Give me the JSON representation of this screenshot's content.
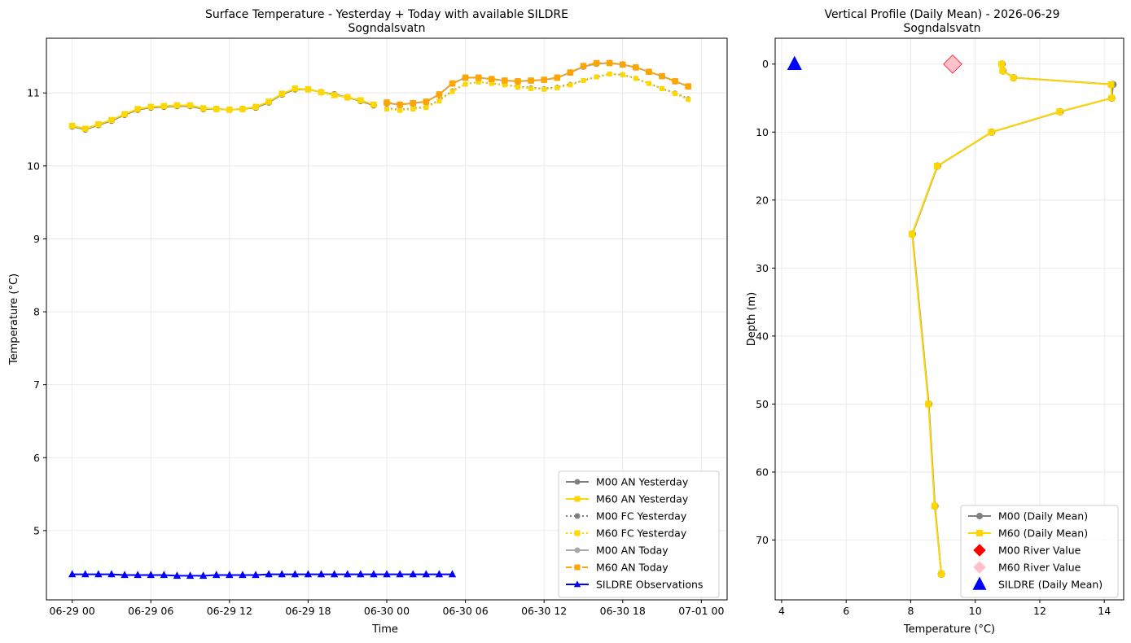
{
  "chart_data": [
    {
      "type": "line",
      "title": "Surface Temperature - Yesterday + Today with available SILDRE",
      "subtitle": "Sogndalsvatn",
      "xlabel": "Time",
      "ylabel": "Temperature (°C)",
      "xlim": [
        "2026-06-28 22:02",
        "2026-07-01 01:58"
      ],
      "ylim": [
        4.05,
        11.75
      ],
      "x_tick_labels": [
        "06-29 00",
        "06-29 06",
        "06-29 12",
        "06-29 18",
        "06-30 00",
        "06-30 06",
        "06-30 12",
        "06-30 18",
        "07-01 00"
      ],
      "y_tick_labels": [
        "5",
        "6",
        "7",
        "8",
        "9",
        "10",
        "11"
      ],
      "y_ticks": [
        5,
        6,
        7,
        8,
        9,
        10,
        11
      ],
      "grid": true,
      "legend_position": "lower-right",
      "series": [
        {
          "name": "M00 AN Yesterday",
          "color": "#808080",
          "style": "solid",
          "marker": "circle",
          "x": [
            "06-29 00",
            "06-29 01",
            "06-29 02",
            "06-29 03",
            "06-29 04",
            "06-29 05",
            "06-29 06",
            "06-29 07",
            "06-29 08",
            "06-29 09",
            "06-29 10",
            "06-29 11",
            "06-29 12",
            "06-29 13",
            "06-29 14",
            "06-29 15",
            "06-29 16",
            "06-29 17",
            "06-29 18",
            "06-29 19",
            "06-29 20",
            "06-29 21",
            "06-29 22",
            "06-29 23"
          ],
          "values": [
            10.54,
            10.5,
            10.56,
            10.62,
            10.7,
            10.77,
            10.8,
            10.81,
            10.82,
            10.82,
            10.78,
            10.78,
            10.77,
            10.78,
            10.8,
            10.87,
            10.98,
            11.05,
            11.05,
            11.01,
            10.98,
            10.94,
            10.89,
            10.83
          ]
        },
        {
          "name": "M60 AN Yesterday",
          "color": "#FFD700",
          "style": "solid",
          "marker": "square",
          "x": [
            "06-29 00",
            "06-29 01",
            "06-29 02",
            "06-29 03",
            "06-29 04",
            "06-29 05",
            "06-29 06",
            "06-29 07",
            "06-29 08",
            "06-29 09",
            "06-29 10",
            "06-29 11",
            "06-29 12",
            "06-29 13",
            "06-29 14",
            "06-29 15",
            "06-29 16",
            "06-29 17",
            "06-29 18",
            "06-29 19",
            "06-29 20",
            "06-29 21",
            "06-29 22",
            "06-29 23"
          ],
          "values": [
            10.55,
            10.51,
            10.57,
            10.63,
            10.71,
            10.78,
            10.81,
            10.82,
            10.83,
            10.83,
            10.79,
            10.78,
            10.77,
            10.78,
            10.81,
            10.88,
            10.99,
            11.06,
            11.05,
            11.01,
            10.97,
            10.94,
            10.9,
            10.84
          ]
        },
        {
          "name": "M00 FC Yesterday",
          "color": "#808080",
          "style": "dotted",
          "marker": "circle",
          "x": [
            "06-30 00",
            "06-30 01",
            "06-30 02",
            "06-30 03",
            "06-30 04",
            "06-30 05",
            "06-30 06",
            "06-30 07",
            "06-30 08",
            "06-30 09",
            "06-30 10",
            "06-30 11",
            "06-30 12",
            "06-30 13",
            "06-30 14",
            "06-30 15",
            "06-30 16",
            "06-30 17",
            "06-30 18",
            "06-30 19",
            "06-30 20",
            "06-30 21",
            "06-30 22",
            "06-30 23"
          ],
          "values": [
            10.79,
            10.77,
            10.79,
            10.81,
            10.9,
            11.03,
            11.12,
            11.15,
            11.13,
            11.11,
            11.09,
            11.07,
            11.06,
            11.08,
            11.12,
            11.17,
            11.22,
            11.26,
            11.25,
            11.2,
            11.13,
            11.06,
            11.0,
            10.92
          ]
        },
        {
          "name": "M60 FC Yesterday",
          "color": "#FFD700",
          "style": "dotted",
          "marker": "square",
          "x": [
            "06-30 00",
            "06-30 01",
            "06-30 02",
            "06-30 03",
            "06-30 04",
            "06-30 05",
            "06-30 06",
            "06-30 07",
            "06-30 08",
            "06-30 09",
            "06-30 10",
            "06-30 11",
            "06-30 12",
            "06-30 13",
            "06-30 14",
            "06-30 15",
            "06-30 16",
            "06-30 17",
            "06-30 18",
            "06-30 19",
            "06-30 20",
            "06-30 21",
            "06-30 22",
            "06-30 23"
          ],
          "values": [
            10.78,
            10.76,
            10.78,
            10.8,
            10.89,
            11.02,
            11.12,
            11.15,
            11.13,
            11.11,
            11.08,
            11.06,
            11.05,
            11.07,
            11.11,
            11.17,
            11.22,
            11.26,
            11.25,
            11.2,
            11.13,
            11.06,
            10.99,
            10.91
          ]
        },
        {
          "name": "M00 AN Today",
          "color": "#A9A9A9",
          "style": "solid",
          "marker": "circle",
          "x": [
            "06-30 00",
            "06-30 01",
            "06-30 02",
            "06-30 03",
            "06-30 04",
            "06-30 05",
            "06-30 06",
            "06-30 07",
            "06-30 08",
            "06-30 09",
            "06-30 10",
            "06-30 11",
            "06-30 12",
            "06-30 13",
            "06-30 14",
            "06-30 15",
            "06-30 16",
            "06-30 17",
            "06-30 18",
            "06-30 19",
            "06-30 20",
            "06-30 21",
            "06-30 22",
            "06-30 23"
          ],
          "values": [
            10.86,
            10.84,
            10.86,
            10.88,
            10.98,
            11.13,
            11.21,
            11.21,
            11.19,
            11.17,
            11.16,
            11.17,
            11.18,
            11.21,
            11.28,
            11.36,
            11.4,
            11.41,
            11.39,
            11.35,
            11.29,
            11.23,
            11.16,
            11.09
          ]
        },
        {
          "name": "M60 AN Today",
          "color": "#FFA500",
          "style": "dashed",
          "marker": "square",
          "x": [
            "06-30 00",
            "06-30 01",
            "06-30 02",
            "06-30 03",
            "06-30 04",
            "06-30 05",
            "06-30 06",
            "06-30 07",
            "06-30 08",
            "06-30 09",
            "06-30 10",
            "06-30 11",
            "06-30 12",
            "06-30 13",
            "06-30 14",
            "06-30 15",
            "06-30 16",
            "06-30 17",
            "06-30 18",
            "06-30 19",
            "06-30 20",
            "06-30 21",
            "06-30 22",
            "06-30 23"
          ],
          "values": [
            10.87,
            10.84,
            10.86,
            10.88,
            10.98,
            11.13,
            11.21,
            11.21,
            11.19,
            11.17,
            11.16,
            11.17,
            11.18,
            11.21,
            11.28,
            11.37,
            11.41,
            11.41,
            11.39,
            11.35,
            11.29,
            11.23,
            11.16,
            11.09
          ]
        },
        {
          "name": "SILDRE Observations",
          "color": "#0000FF",
          "style": "solid",
          "marker": "triangle",
          "x": [
            "06-29 00",
            "06-29 01",
            "06-29 02",
            "06-29 03",
            "06-29 04",
            "06-29 05",
            "06-29 06",
            "06-29 07",
            "06-29 08",
            "06-29 09",
            "06-29 10",
            "06-29 11",
            "06-29 12",
            "06-29 13",
            "06-29 14",
            "06-29 15",
            "06-29 16",
            "06-29 17",
            "06-29 18",
            "06-29 19",
            "06-29 20",
            "06-29 21",
            "06-29 22",
            "06-29 23",
            "06-30 00",
            "06-30 01",
            "06-30 02",
            "06-30 03",
            "06-30 04",
            "06-30 05"
          ],
          "values": [
            4.4,
            4.4,
            4.4,
            4.4,
            4.39,
            4.39,
            4.39,
            4.39,
            4.38,
            4.38,
            4.38,
            4.39,
            4.39,
            4.39,
            4.39,
            4.4,
            4.4,
            4.4,
            4.4,
            4.4,
            4.4,
            4.4,
            4.4,
            4.4,
            4.4,
            4.4,
            4.4,
            4.4,
            4.4,
            4.4
          ]
        }
      ]
    },
    {
      "type": "line",
      "title": "Vertical Profile (Daily Mean) - 2026-06-29",
      "subtitle": "Sogndalsvatn",
      "xlabel": "Temperature (°C)",
      "ylabel": "Depth (m)",
      "xlim": [
        3.8,
        14.6
      ],
      "ylim": [
        -3.8,
        78.8
      ],
      "y_inverted": true,
      "x_ticks": [
        4,
        6,
        8,
        10,
        12,
        14
      ],
      "x_tick_labels": [
        "4",
        "6",
        "8",
        "10",
        "12",
        "14"
      ],
      "y_ticks": [
        0,
        10,
        20,
        30,
        40,
        50,
        60,
        70
      ],
      "y_tick_labels": [
        "0",
        "10",
        "20",
        "30",
        "40",
        "50",
        "60",
        "70"
      ],
      "grid": true,
      "legend_position": "lower-right",
      "series": [
        {
          "name": "M00 (Daily Mean)",
          "color": "#808080",
          "style": "solid",
          "marker": "circle",
          "depth": [
            0,
            1,
            2,
            3,
            5,
            7,
            10,
            15,
            25,
            50,
            65,
            75
          ],
          "values": [
            10.83,
            10.86,
            11.19,
            14.27,
            14.23,
            12.63,
            10.51,
            8.83,
            8.05,
            8.56,
            8.75,
            8.95
          ]
        },
        {
          "name": "M60 (Daily Mean)",
          "color": "#FFD700",
          "style": "solid",
          "marker": "square",
          "depth": [
            0,
            1,
            2,
            3,
            5,
            7,
            10,
            15,
            25,
            50,
            65,
            75
          ],
          "values": [
            10.82,
            10.85,
            11.18,
            14.21,
            14.23,
            12.61,
            10.5,
            8.82,
            8.04,
            8.55,
            8.74,
            8.95
          ]
        },
        {
          "name": "M00 River Value",
          "color": "#FF0000",
          "marker": "diamond",
          "depth": [
            0
          ],
          "values": [
            9.3
          ]
        },
        {
          "name": "M60 River Value",
          "color": "#FFC0CB",
          "marker": "diamond",
          "depth": [
            0
          ],
          "values": [
            9.3
          ]
        },
        {
          "name": "SILDRE (Daily Mean)",
          "color": "#0000FF",
          "marker": "triangle",
          "depth": [
            0
          ],
          "values": [
            4.4
          ]
        }
      ]
    }
  ]
}
